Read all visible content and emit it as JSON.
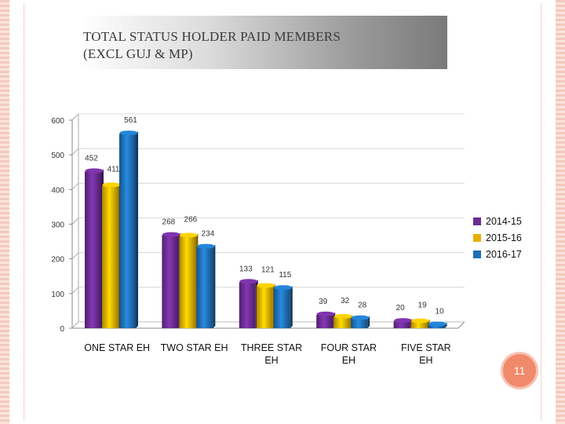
{
  "slide": {
    "title": "TOTAL  STATUS  HOLDER  PAID  MEMBERS\n(EXCL GUJ & MP)",
    "page_number": "11",
    "accent_color": "#f08a6a"
  },
  "chart_data": {
    "type": "bar",
    "title": "",
    "xlabel": "",
    "ylabel": "",
    "ylim": [
      0,
      600
    ],
    "yticks": [
      0,
      100,
      200,
      300,
      400,
      500,
      600
    ],
    "categories": [
      "ONE STAR EH",
      "TWO STAR EH",
      "THREE STAR EH",
      "FOUR STAR EH",
      "FIVE STAR EH"
    ],
    "series": [
      {
        "name": "2014-15",
        "color": "#6a2c91",
        "values": [
          452,
          268,
          133,
          39,
          20
        ]
      },
      {
        "name": "2015-16",
        "color": "#e8b000",
        "values": [
          411,
          266,
          121,
          32,
          19
        ]
      },
      {
        "name": "2016-17",
        "color": "#1f6fb5",
        "values": [
          561,
          234,
          115,
          28,
          10
        ]
      }
    ],
    "data_labels": true,
    "grid": false,
    "legend_position": "right"
  }
}
